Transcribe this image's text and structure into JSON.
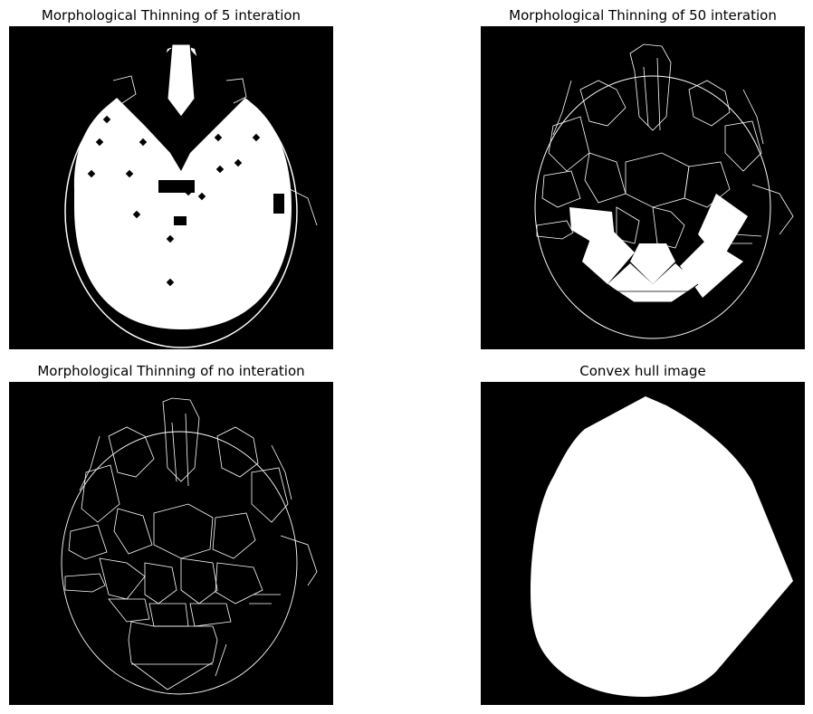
{
  "panels": [
    {
      "title": "Morphological Thinning of 5 interation",
      "image": "skeleton-mostly-filled-skull"
    },
    {
      "title": "Morphological Thinning of 50 interation",
      "image": "skeleton-partially-filled-skull"
    },
    {
      "title": "Morphological Thinning of no interation",
      "image": "skeleton-line-skull"
    },
    {
      "title": "Convex hull image",
      "image": "convex-hull-white-shape"
    }
  ],
  "colors": {
    "background": "#000000",
    "foreground": "#ffffff",
    "page": "#ffffff"
  }
}
